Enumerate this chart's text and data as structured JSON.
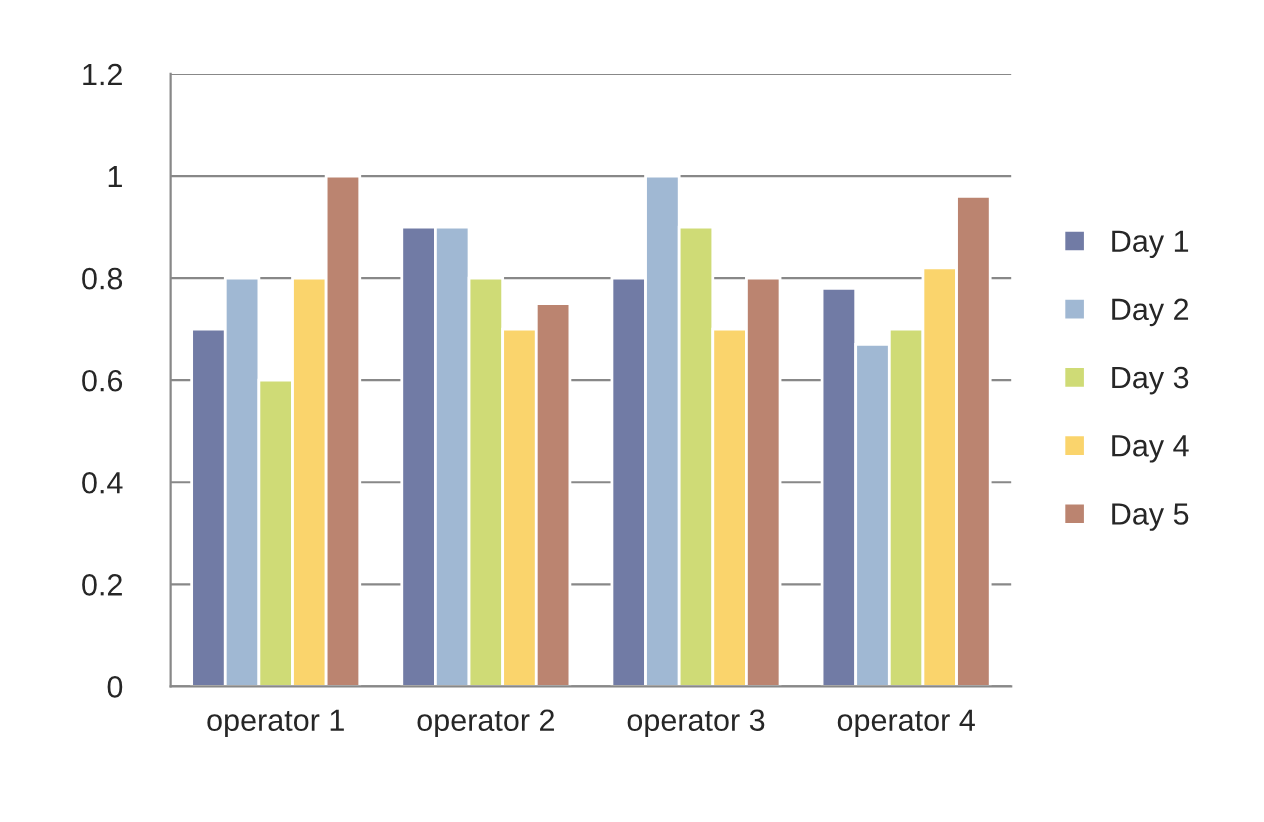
{
  "chart_data": {
    "type": "bar",
    "categories": [
      "operator 1",
      "operator 2",
      "operator 3",
      "operator 4"
    ],
    "series": [
      {
        "name": "Day 1",
        "color": "#717ba5",
        "values": [
          0.7,
          0.9,
          0.8,
          0.78
        ]
      },
      {
        "name": "Day 2",
        "color": "#a0b8d3",
        "values": [
          0.8,
          0.9,
          1.0,
          0.67
        ]
      },
      {
        "name": "Day 3",
        "color": "#cfdb76",
        "values": [
          0.6,
          0.8,
          0.9,
          0.7
        ]
      },
      {
        "name": "Day 4",
        "color": "#fad46c",
        "values": [
          0.8,
          0.7,
          0.7,
          0.82
        ]
      },
      {
        "name": "Day 5",
        "color": "#bb8470",
        "values": [
          1.0,
          0.75,
          0.8,
          0.96
        ]
      }
    ],
    "ylim": [
      0,
      1.2
    ],
    "yticks": [
      0,
      0.2,
      0.4,
      0.6,
      0.8,
      1,
      1.2
    ],
    "grid": "y",
    "legend": "right"
  }
}
